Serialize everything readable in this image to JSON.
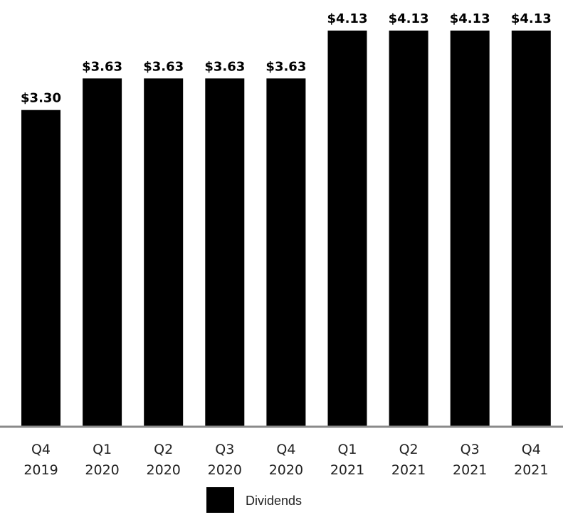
{
  "chart_data": {
    "type": "bar",
    "categories": [
      [
        "Q4",
        "2019"
      ],
      [
        "Q1",
        "2020"
      ],
      [
        "Q2",
        "2020"
      ],
      [
        "Q3",
        "2020"
      ],
      [
        "Q4",
        "2020"
      ],
      [
        "Q1",
        "2021"
      ],
      [
        "Q2",
        "2021"
      ],
      [
        "Q3",
        "2021"
      ],
      [
        "Q4",
        "2021"
      ]
    ],
    "series": [
      {
        "name": "Dividends",
        "values": [
          3.3,
          3.63,
          3.63,
          3.63,
          3.63,
          4.13,
          4.13,
          4.13,
          4.13
        ],
        "labels": [
          "$3.30",
          "$3.63",
          "$3.63",
          "$3.63",
          "$3.63",
          "$4.13",
          "$4.13",
          "$4.13",
          "$4.13"
        ],
        "color": "#000000"
      }
    ],
    "ylim": [
      0,
      4.13
    ],
    "grid": false,
    "legend_position": "bottom-center",
    "axis_color": "#8a8a8a"
  }
}
